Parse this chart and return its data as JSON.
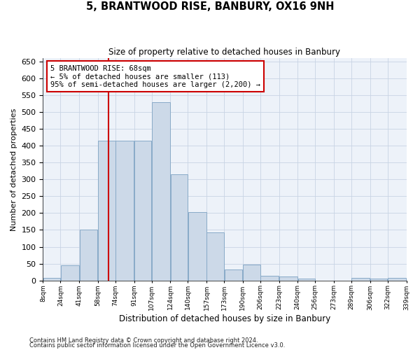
{
  "title": "5, BRANTWOOD RISE, BANBURY, OX16 9NH",
  "subtitle": "Size of property relative to detached houses in Banbury",
  "xlabel": "Distribution of detached houses by size in Banbury",
  "ylabel": "Number of detached properties",
  "bar_color": "#ccd9e8",
  "bar_edgecolor": "#88aac8",
  "grid_color": "#c8d4e4",
  "background_color": "#edf2f9",
  "vline_x": 68,
  "vline_color": "#cc0000",
  "annotation_box_color": "#cc0000",
  "annotation_lines": [
    "5 BRANTWOOD RISE: 68sqm",
    "← 5% of detached houses are smaller (113)",
    "95% of semi-detached houses are larger (2,200) →"
  ],
  "bin_edges": [
    8,
    24,
    41,
    58,
    74,
    91,
    107,
    124,
    140,
    157,
    173,
    190,
    206,
    223,
    240,
    256,
    273,
    289,
    306,
    322,
    339
  ],
  "bin_labels": [
    "8sqm",
    "24sqm",
    "41sqm",
    "58sqm",
    "74sqm",
    "91sqm",
    "107sqm",
    "124sqm",
    "140sqm",
    "157sqm",
    "173sqm",
    "190sqm",
    "206sqm",
    "223sqm",
    "240sqm",
    "256sqm",
    "273sqm",
    "289sqm",
    "306sqm",
    "322sqm",
    "339sqm"
  ],
  "bar_heights": [
    8,
    45,
    150,
    415,
    415,
    415,
    530,
    315,
    202,
    143,
    33,
    47,
    14,
    12,
    6,
    0,
    0,
    7,
    6,
    7
  ],
  "ylim": [
    0,
    660
  ],
  "yticks": [
    0,
    50,
    100,
    150,
    200,
    250,
    300,
    350,
    400,
    450,
    500,
    550,
    600,
    650
  ],
  "footnote1": "Contains HM Land Registry data © Crown copyright and database right 2024.",
  "footnote2": "Contains public sector information licensed under the Open Government Licence v3.0."
}
